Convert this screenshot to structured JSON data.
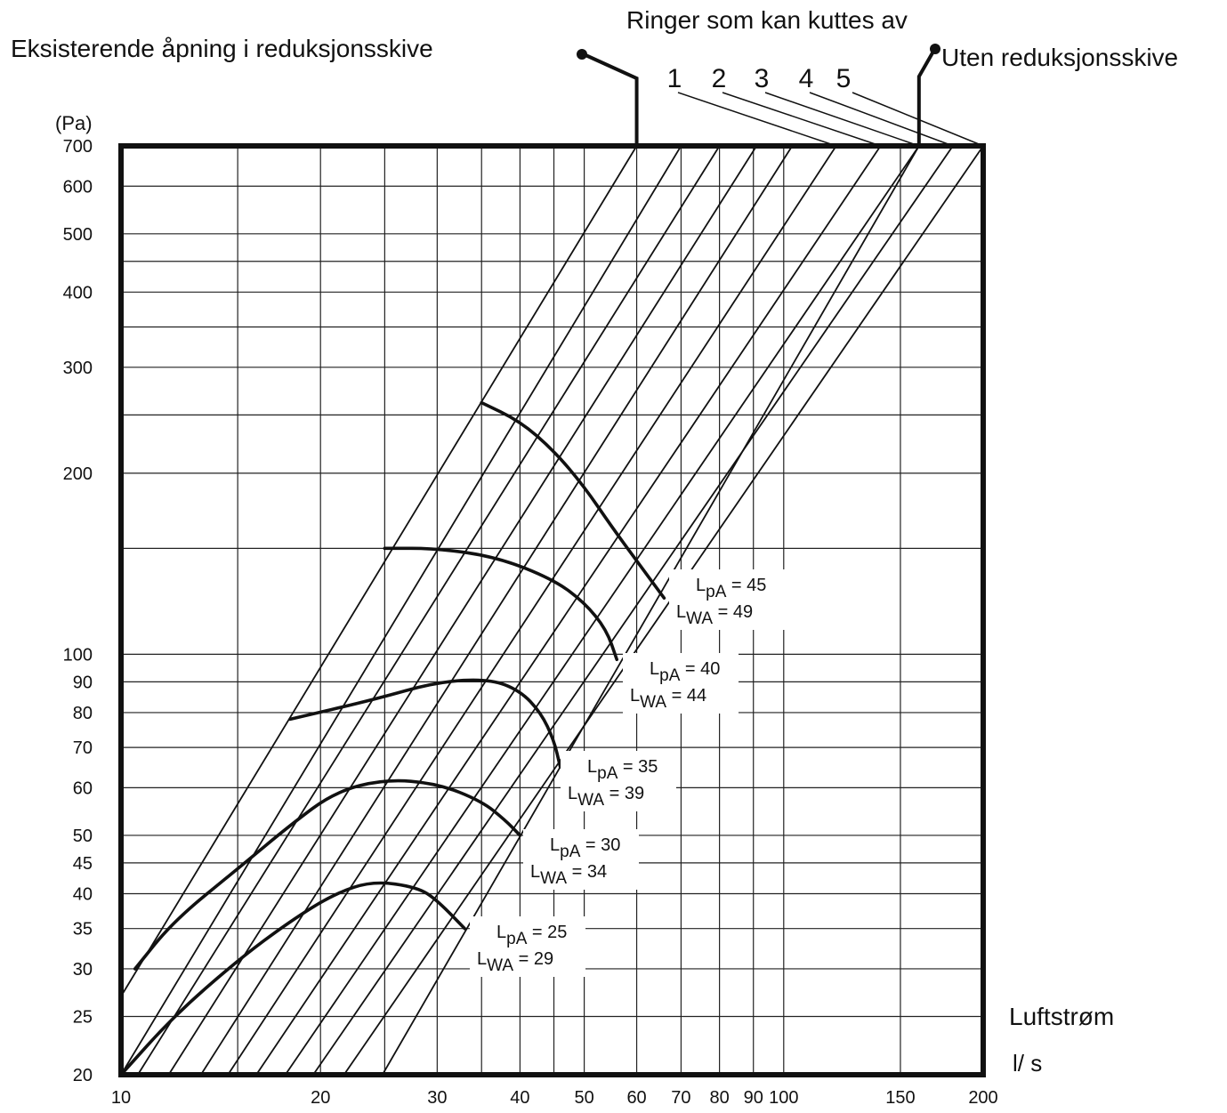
{
  "chart_data": {
    "type": "line",
    "title": "",
    "xlabel": "Luftstrøm",
    "xunit": "l/ s",
    "ylabel": "(Pa)",
    "x_scale": "log",
    "y_scale": "log",
    "xlim": [
      10,
      200
    ],
    "ylim": [
      20,
      700
    ],
    "grid": true,
    "x_ticks": [
      {
        "v": 10,
        "label": "10"
      },
      {
        "v": 20,
        "label": "20"
      },
      {
        "v": 30,
        "label": "30"
      },
      {
        "v": 40,
        "label": "40"
      },
      {
        "v": 50,
        "label": "50"
      },
      {
        "v": 60,
        "label": "60"
      },
      {
        "v": 70,
        "label": "70"
      },
      {
        "v": 80,
        "label": "80"
      },
      {
        "v": 90,
        "label": "90"
      },
      {
        "v": 100,
        "label": "100"
      },
      {
        "v": 150,
        "label": "150"
      },
      {
        "v": 200,
        "label": "200"
      }
    ],
    "x_minor_grid": [
      15,
      25,
      35,
      45
    ],
    "y_ticks": [
      {
        "v": 20,
        "label": "20"
      },
      {
        "v": 25,
        "label": "25"
      },
      {
        "v": 30,
        "label": "30"
      },
      {
        "v": 35,
        "label": "35"
      },
      {
        "v": 40,
        "label": "40"
      },
      {
        "v": 45,
        "label": "45"
      },
      {
        "v": 50,
        "label": "50"
      },
      {
        "v": 60,
        "label": "60"
      },
      {
        "v": 70,
        "label": "70"
      },
      {
        "v": 80,
        "label": "80"
      },
      {
        "v": 90,
        "label": "90"
      },
      {
        "v": 100,
        "label": "100"
      },
      {
        "v": 200,
        "label": "200"
      },
      {
        "v": 300,
        "label": "300"
      },
      {
        "v": 400,
        "label": "400"
      },
      {
        "v": 500,
        "label": "500"
      },
      {
        "v": 600,
        "label": "600"
      },
      {
        "v": 700,
        "label": "700"
      }
    ],
    "y_minor_grid": [
      150,
      250,
      350,
      450
    ],
    "opening_lines": [
      {
        "name": "Eksisterende åpning i reduksjonsskive",
        "points": [
          [
            10,
            27
          ],
          [
            60,
            700
          ]
        ]
      },
      {
        "name": "",
        "points": [
          [
            10,
            20
          ],
          [
            70,
            700
          ]
        ]
      },
      {
        "name": "",
        "points": [
          [
            10.6,
            20
          ],
          [
            80,
            700
          ]
        ]
      },
      {
        "name": "",
        "points": [
          [
            11.8,
            20
          ],
          [
            91,
            700
          ]
        ]
      },
      {
        "name": "",
        "points": [
          [
            13.2,
            20
          ],
          [
            103,
            700
          ]
        ]
      },
      {
        "name": "1",
        "points": [
          [
            14.5,
            20
          ],
          [
            120,
            700
          ]
        ]
      },
      {
        "name": "2",
        "points": [
          [
            16.0,
            20
          ],
          [
            140,
            700
          ]
        ]
      },
      {
        "name": "3",
        "points": [
          [
            17.7,
            20
          ],
          [
            160,
            700
          ]
        ]
      },
      {
        "name": "4",
        "points": [
          [
            19.5,
            20
          ],
          [
            180,
            700
          ]
        ]
      },
      {
        "name": "5",
        "points": [
          [
            21.7,
            20
          ],
          [
            200,
            700
          ]
        ]
      },
      {
        "name": "Uten reduksjonsskive",
        "points": [
          [
            24.8,
            20
          ],
          [
            160,
            700
          ]
        ]
      }
    ],
    "sound_curves": [
      {
        "label_lpa": "= 45",
        "label_lwa": "= 49",
        "points": [
          [
            35,
            262
          ],
          [
            40,
            244
          ],
          [
            45,
            218
          ],
          [
            50,
            190
          ],
          [
            55,
            163
          ],
          [
            60,
            143
          ],
          [
            66,
            124
          ]
        ]
      },
      {
        "label_lpa": "= 40",
        "label_lwa": "= 44",
        "points": [
          [
            25,
            150
          ],
          [
            30,
            150
          ],
          [
            37,
            145
          ],
          [
            45,
            133
          ],
          [
            50,
            122
          ],
          [
            54,
            110
          ],
          [
            56,
            98
          ]
        ]
      },
      {
        "label_lpa": "= 35",
        "label_lwa": "= 39",
        "points": [
          [
            18,
            78
          ],
          [
            24,
            84
          ],
          [
            30,
            90
          ],
          [
            36,
            91
          ],
          [
            40,
            87
          ],
          [
            43,
            80
          ],
          [
            45,
            72
          ],
          [
            46,
            65
          ]
        ]
      },
      {
        "label_lpa": "= 30",
        "label_lwa": "= 34",
        "points": [
          [
            10.5,
            30
          ],
          [
            12,
            36
          ],
          [
            15,
            44
          ],
          [
            18,
            52
          ],
          [
            21,
            59
          ],
          [
            25,
            62
          ],
          [
            30,
            61
          ],
          [
            35,
            57
          ],
          [
            38,
            53
          ],
          [
            40,
            50
          ]
        ]
      },
      {
        "label_lpa": "= 25",
        "label_lwa": "= 29",
        "points": [
          [
            10,
            20
          ],
          [
            12,
            25
          ],
          [
            15,
            31
          ],
          [
            18,
            36
          ],
          [
            21,
            40
          ],
          [
            24,
            42
          ],
          [
            28,
            41
          ],
          [
            30,
            39
          ],
          [
            33,
            35
          ]
        ]
      }
    ],
    "sound_label_symbol": {
      "lpa": [
        "L",
        "pA"
      ],
      "lwa": [
        "L",
        "WA"
      ]
    }
  },
  "annotations": {
    "existing_opening": "Eksisterende åpning i reduksjonsskive",
    "rings_title": "Ringer som kan kuttes av",
    "rings": [
      "1",
      "2",
      "3",
      "4",
      "5"
    ],
    "without_disc": "Uten reduksjonsskive"
  }
}
